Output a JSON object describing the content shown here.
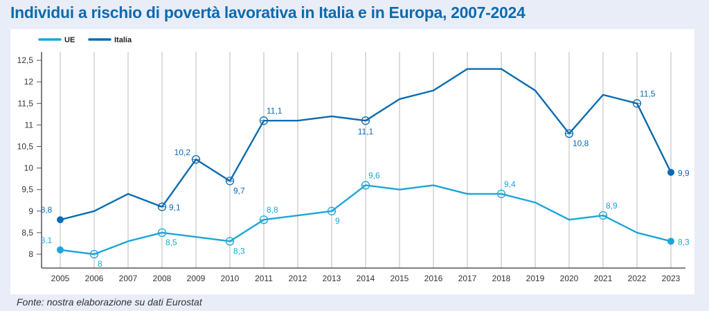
{
  "page": {
    "title": "Individui a rischio di povertà lavorativa in Italia e in Europa, 2007-2024",
    "source": "Fonte: nostra elaborazione su dati Eurostat"
  },
  "chart_data": {
    "type": "line",
    "title": "Individui a rischio di povertà lavorativa in Italia e in Europa, 2007-2024",
    "xlabel": "",
    "ylabel": "",
    "x": [
      "2005",
      "2006",
      "2007",
      "2008",
      "2009",
      "2010",
      "2011",
      "2012",
      "2013",
      "2014",
      "2015",
      "2016",
      "2017",
      "2018",
      "2019",
      "2020",
      "2021",
      "2022",
      "2023"
    ],
    "ylim": [
      7.7,
      12.6
    ],
    "yticks": [
      8,
      8.5,
      9,
      9.5,
      10,
      10.5,
      11,
      11.5,
      12,
      12.5
    ],
    "ytick_labels": [
      "8",
      "8,5",
      "9",
      "9,5",
      "10",
      "10,5",
      "11",
      "11,5",
      "12",
      "12,5"
    ],
    "grid": "vertical",
    "legend": "top-left",
    "series": [
      {
        "name": "UE",
        "color": "#1aa6d8",
        "values": [
          8.1,
          8.0,
          8.3,
          8.5,
          8.4,
          8.3,
          8.8,
          8.9,
          9.0,
          9.6,
          9.5,
          9.6,
          9.4,
          9.4,
          9.2,
          8.8,
          8.9,
          8.5,
          8.3
        ],
        "annotations": [
          {
            "x": "2005",
            "label": "8,1",
            "marker": "filled",
            "pos": "above-left"
          },
          {
            "x": "2006",
            "label": "8",
            "marker": "open",
            "pos": "below-right"
          },
          {
            "x": "2008",
            "label": "8,5",
            "marker": "open",
            "pos": "below-right"
          },
          {
            "x": "2010",
            "label": "8,3",
            "marker": "open",
            "pos": "below-right"
          },
          {
            "x": "2011",
            "label": "8,8",
            "marker": "open",
            "pos": "above-right"
          },
          {
            "x": "2013",
            "label": "9",
            "marker": "open",
            "pos": "below-right"
          },
          {
            "x": "2014",
            "label": "9,6",
            "marker": "open",
            "pos": "above-right"
          },
          {
            "x": "2018",
            "label": "9,4",
            "marker": "open",
            "pos": "above-right"
          },
          {
            "x": "2021",
            "label": "8,9",
            "marker": "open",
            "pos": "above-right"
          },
          {
            "x": "2023",
            "label": "8,3",
            "marker": "filled",
            "pos": "right"
          }
        ]
      },
      {
        "name": "Italia",
        "color": "#0a6bb0",
        "values": [
          8.8,
          9.0,
          9.4,
          9.1,
          10.2,
          9.7,
          11.1,
          11.1,
          11.2,
          11.1,
          11.6,
          11.8,
          12.3,
          12.3,
          11.8,
          10.8,
          11.7,
          11.5,
          9.9
        ],
        "annotations": [
          {
            "x": "2005",
            "label": "8,8",
            "marker": "filled",
            "pos": "above-left"
          },
          {
            "x": "2008",
            "label": "9,1",
            "marker": "open",
            "pos": "right"
          },
          {
            "x": "2009",
            "label": "10,2",
            "marker": "open",
            "pos": "left"
          },
          {
            "x": "2010",
            "label": "9,7",
            "marker": "open",
            "pos": "below-right"
          },
          {
            "x": "2011",
            "label": "11,1",
            "marker": "open",
            "pos": "above-right"
          },
          {
            "x": "2014",
            "label": "11,1",
            "marker": "open",
            "pos": "below"
          },
          {
            "x": "2020",
            "label": "10,8",
            "marker": "open",
            "pos": "below-right"
          },
          {
            "x": "2022",
            "label": "11,5",
            "marker": "open",
            "pos": "above-right"
          },
          {
            "x": "2023",
            "label": "9,9",
            "marker": "filled",
            "pos": "right"
          }
        ]
      }
    ]
  }
}
